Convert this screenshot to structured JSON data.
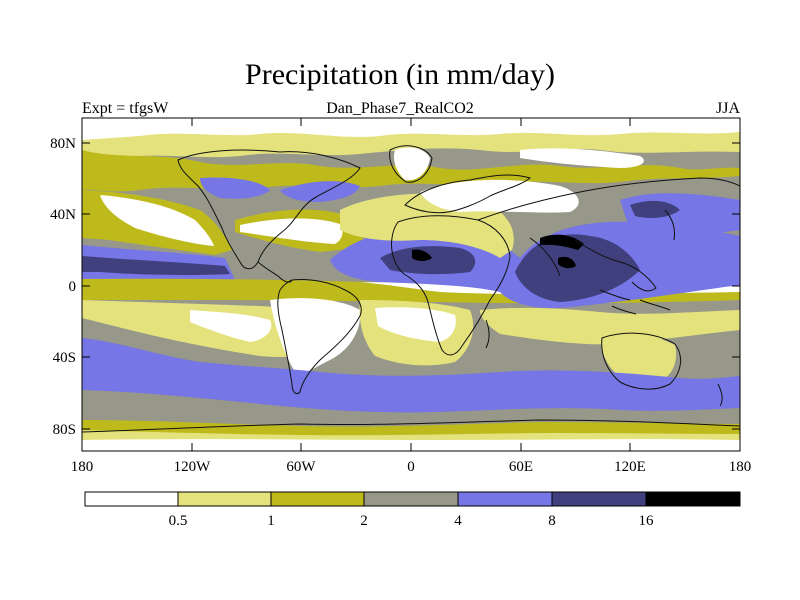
{
  "title": "Precipitation (in mm/day)",
  "subtitle": "Dan_Phase7_RealCO2",
  "experiment": "Expt = tfgsW",
  "season": "JJA",
  "lat_ticks": [
    "80N",
    "40N",
    "0",
    "40S",
    "80S"
  ],
  "lon_ticks": [
    "180",
    "120W",
    "60W",
    "0",
    "60E",
    "120E",
    "180"
  ],
  "colorbar": {
    "labels": [
      "0.5",
      "1",
      "2",
      "4",
      "8",
      "16"
    ],
    "colors": [
      "#ffffff",
      "#e4e27c",
      "#bfba1c",
      "#97978a",
      "#7676e6",
      "#40407e",
      "#000000"
    ]
  },
  "colors": {
    "white": "#ffffff",
    "light_yellow": "#e4e27c",
    "olive": "#bfba1c",
    "gray": "#97978a",
    "blue": "#7676e6",
    "dark_blue": "#40407e",
    "black": "#000000",
    "coast": "#111111"
  }
}
